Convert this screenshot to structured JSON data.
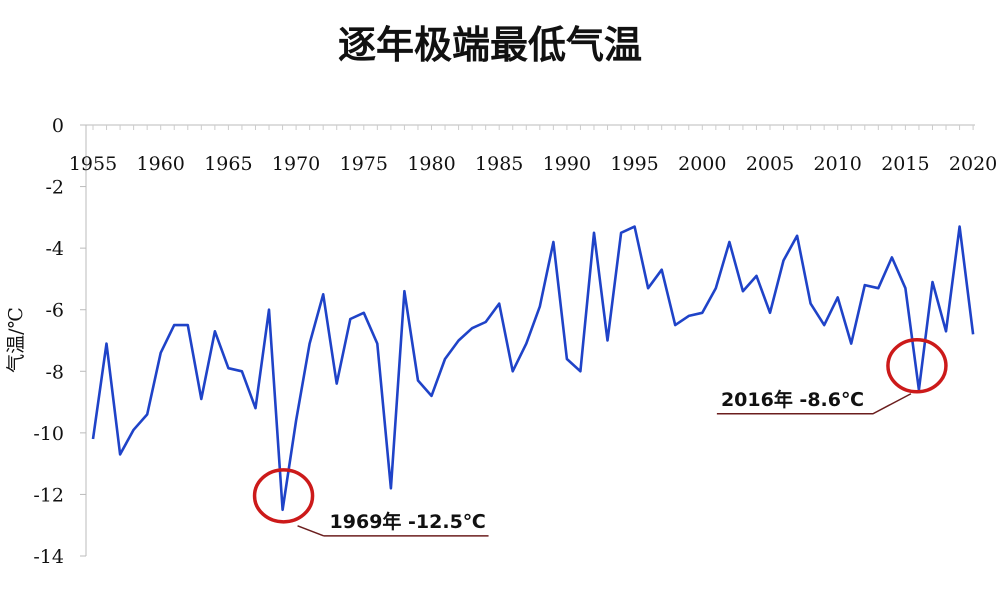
{
  "chart_data": {
    "type": "line",
    "title": "逐年极端最低气温",
    "ylabel": "气温/℃",
    "xlabel": "",
    "ylim": [
      -14,
      0
    ],
    "y_ticks": [
      "0",
      "-2",
      "-4",
      "-6",
      "-8",
      "-10",
      "-12",
      "-14"
    ],
    "x_tick_labels": [
      "1955",
      "1960",
      "1965",
      "1970",
      "1975",
      "1980",
      "1985",
      "1990",
      "1995",
      "2000",
      "2005",
      "2010",
      "2015",
      "2020"
    ],
    "grid": false,
    "line_color": "#1f43c8",
    "series": [
      {
        "x": [
          1955,
          1956,
          1957,
          1958,
          1959,
          1960,
          1961,
          1962,
          1963,
          1964,
          1965,
          1966,
          1967,
          1968,
          1969,
          1970,
          1971,
          1972,
          1973,
          1974,
          1975,
          1976,
          1977,
          1978,
          1979,
          1980,
          1981,
          1982,
          1983,
          1984,
          1985,
          1986,
          1987,
          1988,
          1989,
          1990,
          1991,
          1992,
          1993,
          1994,
          1995,
          1996,
          1997,
          1998,
          1999,
          2000,
          2001,
          2002,
          2003,
          2004,
          2005,
          2006,
          2007,
          2008,
          2009,
          2010,
          2011,
          2012,
          2013,
          2014,
          2015,
          2016,
          2017,
          2018,
          2019,
          2020
        ],
        "values": [
          -10.2,
          -7.1,
          -10.7,
          -9.9,
          -9.4,
          -7.4,
          -6.5,
          -6.5,
          -8.9,
          -6.7,
          -7.9,
          -8.0,
          -9.2,
          -6.0,
          -12.5,
          -9.6,
          -7.1,
          -5.5,
          -8.4,
          -6.3,
          -6.1,
          -7.1,
          -11.8,
          -5.4,
          -8.3,
          -8.8,
          -7.6,
          -7.0,
          -6.6,
          -6.4,
          -5.8,
          -8.0,
          -7.1,
          -5.9,
          -3.8,
          -7.6,
          -8.0,
          -3.5,
          -7.0,
          -3.5,
          -3.3,
          -5.3,
          -4.7,
          -6.5,
          -6.2,
          -6.1,
          -5.3,
          -3.8,
          -5.4,
          -4.9,
          -6.1,
          -4.4,
          -3.6,
          -5.8,
          -6.5,
          -5.6,
          -7.1,
          -5.2,
          -5.3,
          -4.3,
          -5.3,
          -8.6,
          -5.1,
          -6.7,
          -3.3,
          -6.8
        ]
      }
    ],
    "annotations": [
      {
        "x": 1969,
        "y": -12.5,
        "text": "1969年 -12.5℃",
        "circle_color": "#cc1a1a"
      },
      {
        "x": 2016,
        "y": -8.6,
        "text": "2016年  -8.6℃",
        "circle_color": "#cc1a1a"
      }
    ]
  }
}
